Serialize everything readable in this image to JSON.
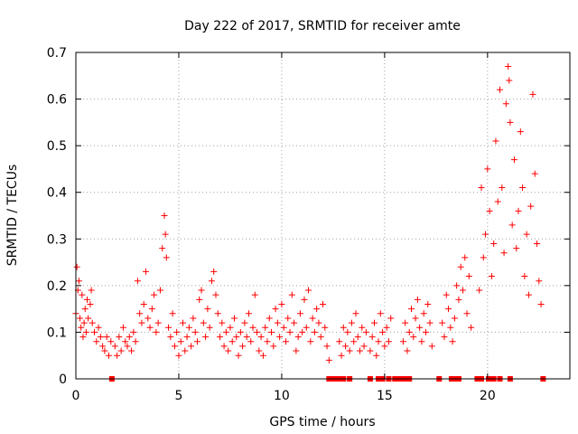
{
  "chart_data": {
    "type": "scatter",
    "title": "Day 222 of 2017, SRMTID for receiver amte",
    "xlabel": "GPS time / hours",
    "ylabel": "SRMTID / TECUs",
    "xlim": [
      0,
      24
    ],
    "ylim": [
      0,
      0.7
    ],
    "x_ticks": [
      0,
      5,
      10,
      15,
      20
    ],
    "x_tick_labels": [
      "0",
      "5",
      "10",
      "15",
      "20"
    ],
    "y_ticks": [
      0,
      0.1,
      0.2,
      0.3,
      0.4,
      0.5,
      0.6,
      0.7
    ],
    "y_tick_labels": [
      "0",
      "0.1",
      "0.2",
      "0.3",
      "0.4",
      "0.5",
      "0.6",
      "0.7"
    ],
    "grid": true,
    "marker": "+",
    "color": "#ff0000",
    "series": [
      {
        "name": "SRMTID",
        "points": [
          [
            0.0,
            0.14
          ],
          [
            0.05,
            0.24
          ],
          [
            0.1,
            0.19
          ],
          [
            0.15,
            0.21
          ],
          [
            0.2,
            0.13
          ],
          [
            0.25,
            0.11
          ],
          [
            0.3,
            0.18
          ],
          [
            0.35,
            0.09
          ],
          [
            0.4,
            0.12
          ],
          [
            0.45,
            0.15
          ],
          [
            0.5,
            0.1
          ],
          [
            0.55,
            0.17
          ],
          [
            0.6,
            0.13
          ],
          [
            0.7,
            0.16
          ],
          [
            0.75,
            0.19
          ],
          [
            0.8,
            0.12
          ],
          [
            0.9,
            0.1
          ],
          [
            1.0,
            0.08
          ],
          [
            1.1,
            0.11
          ],
          [
            1.2,
            0.09
          ],
          [
            1.3,
            0.07
          ],
          [
            1.4,
            0.06
          ],
          [
            1.5,
            0.09
          ],
          [
            1.6,
            0.05
          ],
          [
            1.7,
            0.08
          ],
          [
            1.9,
            0.07
          ],
          [
            2.0,
            0.05
          ],
          [
            2.1,
            0.09
          ],
          [
            2.2,
            0.06
          ],
          [
            2.3,
            0.11
          ],
          [
            2.4,
            0.08
          ],
          [
            2.5,
            0.07
          ],
          [
            2.6,
            0.09
          ],
          [
            2.7,
            0.06
          ],
          [
            2.8,
            0.1
          ],
          [
            2.9,
            0.08
          ],
          [
            3.0,
            0.21
          ],
          [
            3.1,
            0.14
          ],
          [
            3.2,
            0.12
          ],
          [
            3.3,
            0.16
          ],
          [
            3.4,
            0.23
          ],
          [
            3.5,
            0.13
          ],
          [
            3.6,
            0.11
          ],
          [
            3.7,
            0.15
          ],
          [
            3.8,
            0.18
          ],
          [
            3.9,
            0.1
          ],
          [
            4.0,
            0.12
          ],
          [
            4.1,
            0.19
          ],
          [
            4.2,
            0.28
          ],
          [
            4.3,
            0.35
          ],
          [
            4.35,
            0.31
          ],
          [
            4.4,
            0.26
          ],
          [
            4.5,
            0.11
          ],
          [
            4.6,
            0.09
          ],
          [
            4.7,
            0.14
          ],
          [
            4.8,
            0.07
          ],
          [
            4.9,
            0.1
          ],
          [
            5.0,
            0.05
          ],
          [
            5.1,
            0.08
          ],
          [
            5.2,
            0.12
          ],
          [
            5.3,
            0.06
          ],
          [
            5.4,
            0.09
          ],
          [
            5.5,
            0.11
          ],
          [
            5.6,
            0.07
          ],
          [
            5.7,
            0.13
          ],
          [
            5.8,
            0.1
          ],
          [
            5.9,
            0.08
          ],
          [
            6.0,
            0.17
          ],
          [
            6.1,
            0.19
          ],
          [
            6.2,
            0.12
          ],
          [
            6.3,
            0.09
          ],
          [
            6.4,
            0.15
          ],
          [
            6.5,
            0.11
          ],
          [
            6.6,
            0.21
          ],
          [
            6.7,
            0.23
          ],
          [
            6.8,
            0.18
          ],
          [
            6.9,
            0.14
          ],
          [
            7.0,
            0.09
          ],
          [
            7.1,
            0.12
          ],
          [
            7.2,
            0.07
          ],
          [
            7.3,
            0.1
          ],
          [
            7.4,
            0.06
          ],
          [
            7.5,
            0.11
          ],
          [
            7.6,
            0.08
          ],
          [
            7.7,
            0.13
          ],
          [
            7.8,
            0.09
          ],
          [
            7.9,
            0.05
          ],
          [
            8.0,
            0.1
          ],
          [
            8.1,
            0.07
          ],
          [
            8.2,
            0.12
          ],
          [
            8.3,
            0.09
          ],
          [
            8.4,
            0.14
          ],
          [
            8.5,
            0.08
          ],
          [
            8.6,
            0.11
          ],
          [
            8.7,
            0.18
          ],
          [
            8.8,
            0.1
          ],
          [
            8.9,
            0.06
          ],
          [
            9.0,
            0.09
          ],
          [
            9.1,
            0.05
          ],
          [
            9.2,
            0.11
          ],
          [
            9.3,
            0.08
          ],
          [
            9.4,
            0.13
          ],
          [
            9.5,
            0.1
          ],
          [
            9.6,
            0.07
          ],
          [
            9.7,
            0.15
          ],
          [
            9.8,
            0.12
          ],
          [
            9.9,
            0.09
          ],
          [
            10.0,
            0.16
          ],
          [
            10.1,
            0.11
          ],
          [
            10.2,
            0.08
          ],
          [
            10.3,
            0.13
          ],
          [
            10.4,
            0.1
          ],
          [
            10.5,
            0.18
          ],
          [
            10.6,
            0.12
          ],
          [
            10.7,
            0.06
          ],
          [
            10.8,
            0.09
          ],
          [
            10.9,
            0.14
          ],
          [
            11.0,
            0.1
          ],
          [
            11.1,
            0.17
          ],
          [
            11.2,
            0.11
          ],
          [
            11.3,
            0.19
          ],
          [
            11.4,
            0.08
          ],
          [
            11.5,
            0.13
          ],
          [
            11.6,
            0.1
          ],
          [
            11.7,
            0.15
          ],
          [
            11.8,
            0.12
          ],
          [
            11.9,
            0.09
          ],
          [
            12.0,
            0.16
          ],
          [
            12.1,
            0.11
          ],
          [
            12.2,
            0.07
          ],
          [
            12.3,
            0.04
          ],
          [
            12.8,
            0.08
          ],
          [
            12.9,
            0.05
          ],
          [
            13.0,
            0.11
          ],
          [
            13.1,
            0.07
          ],
          [
            13.2,
            0.1
          ],
          [
            13.3,
            0.06
          ],
          [
            13.4,
            0.12
          ],
          [
            13.5,
            0.08
          ],
          [
            13.6,
            0.14
          ],
          [
            13.7,
            0.09
          ],
          [
            13.8,
            0.06
          ],
          [
            13.9,
            0.11
          ],
          [
            14.0,
            0.07
          ],
          [
            14.1,
            0.1
          ],
          [
            14.3,
            0.06
          ],
          [
            14.4,
            0.09
          ],
          [
            14.5,
            0.12
          ],
          [
            14.6,
            0.05
          ],
          [
            14.7,
            0.08
          ],
          [
            14.8,
            0.14
          ],
          [
            14.9,
            0.1
          ],
          [
            15.0,
            0.07
          ],
          [
            15.1,
            0.11
          ],
          [
            15.2,
            0.08
          ],
          [
            15.3,
            0.13
          ],
          [
            15.9,
            0.08
          ],
          [
            16.0,
            0.12
          ],
          [
            16.1,
            0.06
          ],
          [
            16.2,
            0.1
          ],
          [
            16.3,
            0.15
          ],
          [
            16.4,
            0.09
          ],
          [
            16.5,
            0.13
          ],
          [
            16.6,
            0.17
          ],
          [
            16.7,
            0.11
          ],
          [
            16.8,
            0.08
          ],
          [
            16.9,
            0.14
          ],
          [
            17.0,
            0.1
          ],
          [
            17.1,
            0.16
          ],
          [
            17.2,
            0.12
          ],
          [
            17.3,
            0.07
          ],
          [
            17.8,
            0.12
          ],
          [
            17.9,
            0.09
          ],
          [
            18.0,
            0.18
          ],
          [
            18.1,
            0.15
          ],
          [
            18.2,
            0.11
          ],
          [
            18.3,
            0.08
          ],
          [
            18.4,
            0.13
          ],
          [
            18.5,
            0.2
          ],
          [
            18.6,
            0.17
          ],
          [
            18.7,
            0.24
          ],
          [
            18.8,
            0.19
          ],
          [
            18.9,
            0.26
          ],
          [
            19.0,
            0.14
          ],
          [
            19.1,
            0.22
          ],
          [
            19.2,
            0.11
          ],
          [
            19.6,
            0.19
          ],
          [
            19.7,
            0.41
          ],
          [
            19.8,
            0.26
          ],
          [
            19.9,
            0.31
          ],
          [
            20.0,
            0.45
          ],
          [
            20.1,
            0.36
          ],
          [
            20.2,
            0.22
          ],
          [
            20.3,
            0.29
          ],
          [
            20.4,
            0.51
          ],
          [
            20.5,
            0.38
          ],
          [
            20.6,
            0.62
          ],
          [
            20.7,
            0.41
          ],
          [
            20.8,
            0.27
          ],
          [
            20.9,
            0.59
          ],
          [
            21.0,
            0.67
          ],
          [
            21.05,
            0.64
          ],
          [
            21.1,
            0.55
          ],
          [
            21.2,
            0.33
          ],
          [
            21.3,
            0.47
          ],
          [
            21.4,
            0.28
          ],
          [
            21.5,
            0.36
          ],
          [
            21.6,
            0.53
          ],
          [
            21.7,
            0.41
          ],
          [
            21.8,
            0.22
          ],
          [
            21.9,
            0.31
          ],
          [
            22.0,
            0.18
          ],
          [
            22.1,
            0.37
          ],
          [
            22.2,
            0.61
          ],
          [
            22.3,
            0.44
          ],
          [
            22.4,
            0.29
          ],
          [
            22.5,
            0.21
          ],
          [
            22.6,
            0.16
          ]
        ],
        "zero_points_x": [
          1.75,
          12.3,
          12.5,
          12.65,
          12.8,
          13.0,
          13.3,
          14.3,
          14.7,
          14.9,
          15.2,
          15.5,
          15.75,
          16.0,
          16.2,
          17.65,
          18.25,
          18.45,
          18.6,
          19.5,
          19.7,
          20.05,
          20.3,
          20.6,
          21.1,
          22.7
        ]
      }
    ]
  }
}
